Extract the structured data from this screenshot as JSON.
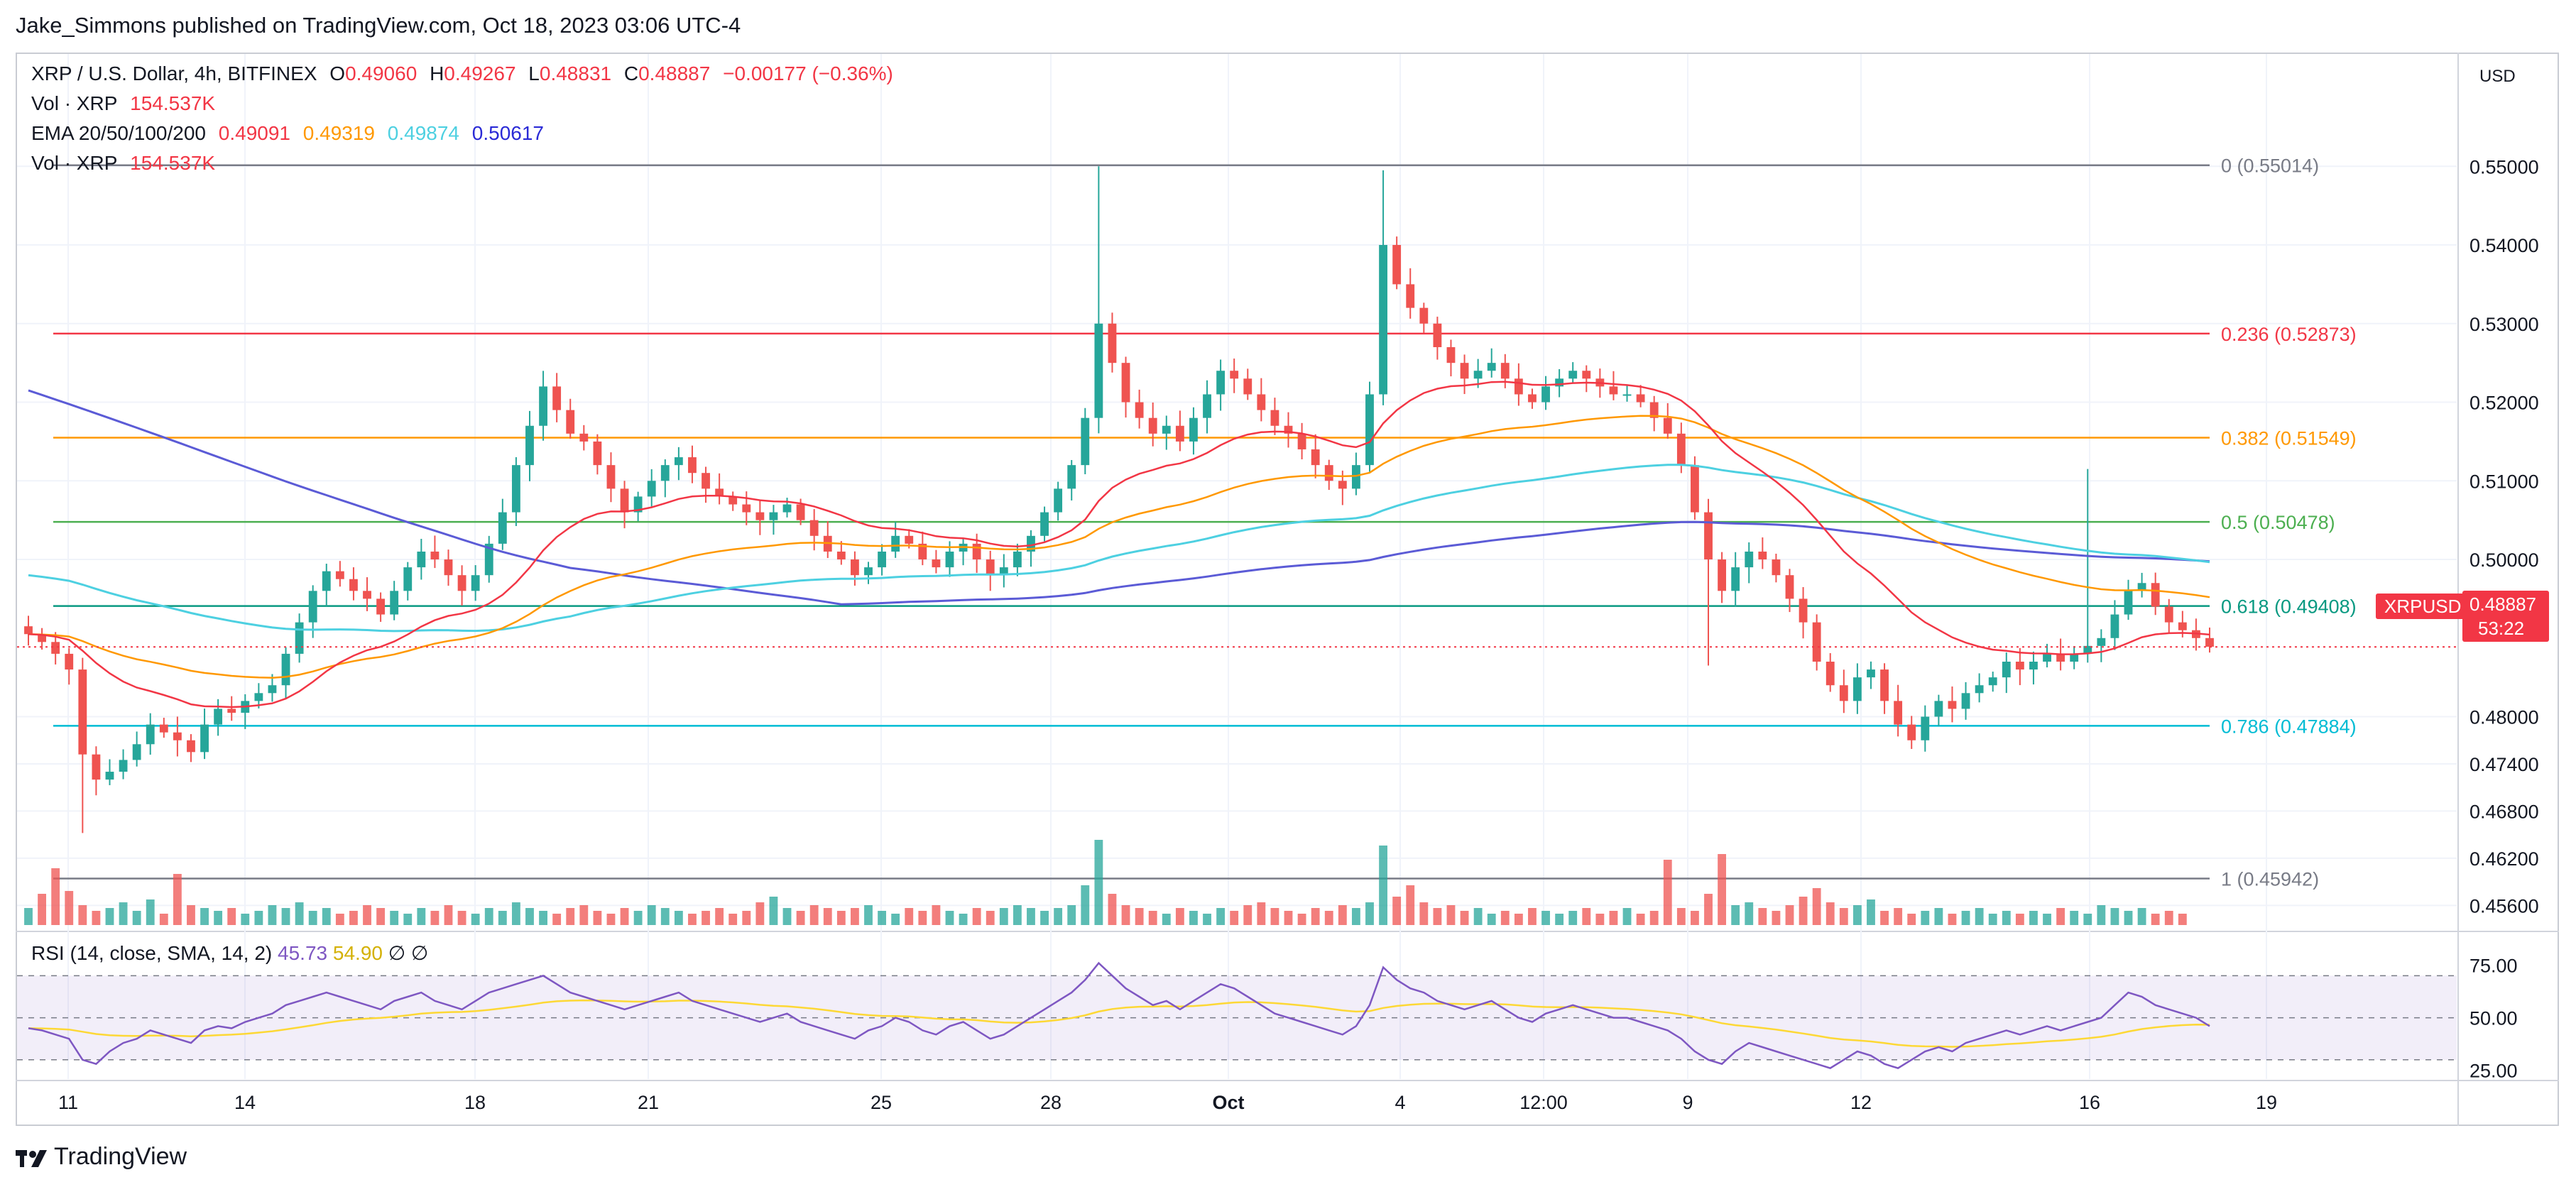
{
  "publisher": "Jake_Simmons published on TradingView.com, Oct 18, 2023 03:06 UTC-4",
  "legend": {
    "symbol": "XRP / U.S. Dollar, 4h, BITFINEX",
    "o_label": "O",
    "o_val": "0.49060",
    "h_label": "H",
    "h_val": "0.49267",
    "l_label": "L",
    "l_val": "0.48831",
    "c_label": "C",
    "c_val": "0.48887",
    "change": "−0.00177 (−0.36%)",
    "vol1_label": "Vol · XRP",
    "vol1_val": "154.537K",
    "ema_label": "EMA 20/50/100/200",
    "ema20": "0.49091",
    "ema50": "0.49319",
    "ema100": "0.49874",
    "ema200": "0.50617",
    "vol2_label": "Vol · XRP",
    "vol2_val": "154.537K"
  },
  "rsi_legend": {
    "label": "RSI (14, close, SMA, 14, 2)",
    "rsi": "45.73",
    "sma": "54.90",
    "n1": "∅",
    "n2": "∅"
  },
  "currency_button": "USD",
  "price_tag": {
    "symbol": "XRPUSD",
    "value": "0.48887",
    "countdown": "53:22"
  },
  "footer": {
    "brand": "TradingView"
  },
  "colors": {
    "up": "#26a69a",
    "down": "#ef5350",
    "ema20": "#f23645",
    "ema50": "#ff9800",
    "ema100": "#4dd0e1",
    "ema200": "#5b5bd6",
    "rsi": "#7e57c2",
    "rsi_sma": "#fdd835"
  },
  "chart_data": {
    "type": "candlestick",
    "title": "XRP / U.S. Dollar, 4h, BITFINEX",
    "price_axis_ticks": [
      0.55,
      0.54,
      0.53,
      0.52,
      0.51,
      0.5,
      0.48,
      0.474,
      0.468,
      0.462,
      0.456
    ],
    "x_axis_ticks": [
      "11",
      "14",
      "18",
      "21",
      "25",
      "28",
      "Oct",
      "4",
      "12:00",
      "9",
      "12",
      "16",
      "19"
    ],
    "fib_levels": [
      {
        "label": "0 (0.55014)",
        "value": 0.55014,
        "color": "#787b86"
      },
      {
        "label": "0.236 (0.52873)",
        "value": 0.52873,
        "color": "#f23645"
      },
      {
        "label": "0.382 (0.51549)",
        "value": 0.51549,
        "color": "#ff9800"
      },
      {
        "label": "0.5 (0.50478)",
        "value": 0.50478,
        "color": "#4caf50"
      },
      {
        "label": "0.618 (0.49408)",
        "value": 0.49408,
        "color": "#089981"
      },
      {
        "label": "0.786 (0.47884)",
        "value": 0.47884,
        "color": "#00bcd4"
      },
      {
        "label": "1 (0.45942)",
        "value": 0.45942,
        "color": "#787b86"
      }
    ],
    "last_price": 0.48887,
    "close_path": [
      0.4905,
      0.4895,
      0.488,
      0.486,
      0.4752,
      0.472,
      0.473,
      0.4745,
      0.4765,
      0.479,
      0.478,
      0.477,
      0.4755,
      0.479,
      0.481,
      0.4805,
      0.482,
      0.483,
      0.484,
      0.488,
      0.492,
      0.496,
      0.4985,
      0.4975,
      0.496,
      0.495,
      0.493,
      0.496,
      0.499,
      0.501,
      0.5,
      0.498,
      0.496,
      0.498,
      0.502,
      0.506,
      0.512,
      0.517,
      0.522,
      0.519,
      0.516,
      0.515,
      0.512,
      0.509,
      0.506,
      0.508,
      0.51,
      0.512,
      0.513,
      0.511,
      0.509,
      0.508,
      0.507,
      0.506,
      0.505,
      0.506,
      0.507,
      0.505,
      0.503,
      0.501,
      0.5,
      0.498,
      0.499,
      0.501,
      0.503,
      0.502,
      0.5,
      0.499,
      0.501,
      0.502,
      0.5,
      0.498,
      0.499,
      0.501,
      0.503,
      0.506,
      0.509,
      0.512,
      0.518,
      0.53,
      0.525,
      0.52,
      0.518,
      0.516,
      0.517,
      0.515,
      0.518,
      0.521,
      0.524,
      0.523,
      0.521,
      0.519,
      0.517,
      0.516,
      0.514,
      0.512,
      0.51,
      0.509,
      0.512,
      0.521,
      0.54,
      0.535,
      0.532,
      0.53,
      0.527,
      0.525,
      0.523,
      0.524,
      0.525,
      0.523,
      0.521,
      0.52,
      0.522,
      0.523,
      0.524,
      0.523,
      0.522,
      0.521,
      0.521,
      0.52,
      0.518,
      0.516,
      0.512,
      0.506,
      0.5,
      0.496,
      0.499,
      0.501,
      0.5,
      0.498,
      0.495,
      0.492,
      0.487,
      0.484,
      0.482,
      0.485,
      0.486,
      0.482,
      0.479,
      0.477,
      0.48,
      0.482,
      0.481,
      0.483,
      0.484,
      0.485,
      0.487,
      0.486,
      0.487,
      0.488,
      0.487,
      0.488,
      0.489,
      0.49,
      0.493,
      0.496,
      0.497,
      0.494,
      0.492,
      0.491,
      0.49,
      0.4889
    ],
    "volume_path": [
      0.6,
      1.1,
      2.0,
      1.2,
      0.7,
      0.5,
      0.6,
      0.8,
      0.5,
      0.9,
      0.4,
      1.8,
      0.7,
      0.6,
      0.5,
      0.6,
      0.4,
      0.5,
      0.7,
      0.6,
      0.8,
      0.5,
      0.6,
      0.4,
      0.5,
      0.7,
      0.6,
      0.5,
      0.4,
      0.6,
      0.5,
      0.7,
      0.5,
      0.4,
      0.6,
      0.5,
      0.8,
      0.6,
      0.5,
      0.4,
      0.6,
      0.7,
      0.5,
      0.4,
      0.6,
      0.5,
      0.7,
      0.6,
      0.5,
      0.4,
      0.5,
      0.6,
      0.4,
      0.5,
      0.8,
      1.0,
      0.6,
      0.5,
      0.7,
      0.6,
      0.5,
      0.6,
      0.7,
      0.5,
      0.4,
      0.6,
      0.5,
      0.7,
      0.5,
      0.4,
      0.6,
      0.5,
      0.6,
      0.7,
      0.6,
      0.5,
      0.6,
      0.7,
      1.4,
      3.0,
      1.1,
      0.7,
      0.6,
      0.5,
      0.4,
      0.6,
      0.5,
      0.4,
      0.6,
      0.5,
      0.7,
      0.8,
      0.6,
      0.5,
      0.4,
      0.6,
      0.5,
      0.7,
      0.6,
      0.8,
      2.8,
      1.0,
      1.4,
      0.8,
      0.6,
      0.7,
      0.5,
      0.6,
      0.4,
      0.5,
      0.4,
      0.6,
      0.5,
      0.4,
      0.5,
      0.6,
      0.4,
      0.5,
      0.6,
      0.4,
      0.5,
      2.3,
      0.6,
      0.5,
      1.1,
      2.5,
      0.7,
      0.8,
      0.6,
      0.5,
      0.7,
      1.0,
      1.3,
      0.8,
      0.6,
      0.7,
      0.9,
      0.5,
      0.6,
      0.4,
      0.5,
      0.6,
      0.4,
      0.5,
      0.6,
      0.4,
      0.5,
      0.4,
      0.5,
      0.4,
      0.6,
      0.5,
      0.4,
      0.7,
      0.6,
      0.5,
      0.6,
      0.4,
      0.5,
      0.4
    ],
    "rsi_path": [
      45,
      44,
      42,
      40,
      30,
      28,
      34,
      38,
      40,
      44,
      42,
      40,
      38,
      44,
      46,
      45,
      48,
      50,
      52,
      56,
      58,
      60,
      62,
      60,
      58,
      56,
      54,
      58,
      60,
      62,
      58,
      56,
      54,
      58,
      62,
      64,
      66,
      68,
      70,
      66,
      62,
      60,
      58,
      56,
      54,
      56,
      58,
      60,
      62,
      58,
      56,
      54,
      52,
      50,
      48,
      50,
      52,
      48,
      46,
      44,
      42,
      40,
      44,
      46,
      50,
      48,
      44,
      42,
      46,
      48,
      44,
      40,
      42,
      46,
      50,
      54,
      58,
      62,
      68,
      76,
      70,
      64,
      60,
      56,
      58,
      54,
      58,
      62,
      66,
      64,
      60,
      56,
      52,
      50,
      48,
      46,
      44,
      42,
      46,
      56,
      74,
      68,
      64,
      62,
      58,
      56,
      54,
      56,
      58,
      54,
      50,
      48,
      52,
      54,
      56,
      54,
      52,
      50,
      50,
      48,
      46,
      44,
      40,
      34,
      30,
      28,
      34,
      38,
      36,
      34,
      32,
      30,
      28,
      26,
      30,
      34,
      32,
      28,
      26,
      30,
      34,
      36,
      34,
      38,
      40,
      42,
      44,
      42,
      44,
      46,
      44,
      46,
      48,
      50,
      56,
      62,
      60,
      56,
      54,
      52,
      50,
      46
    ],
    "rsi_axis_ticks": [
      75.0,
      50.0,
      25.0
    ],
    "rsi_band": [
      70,
      30
    ]
  }
}
